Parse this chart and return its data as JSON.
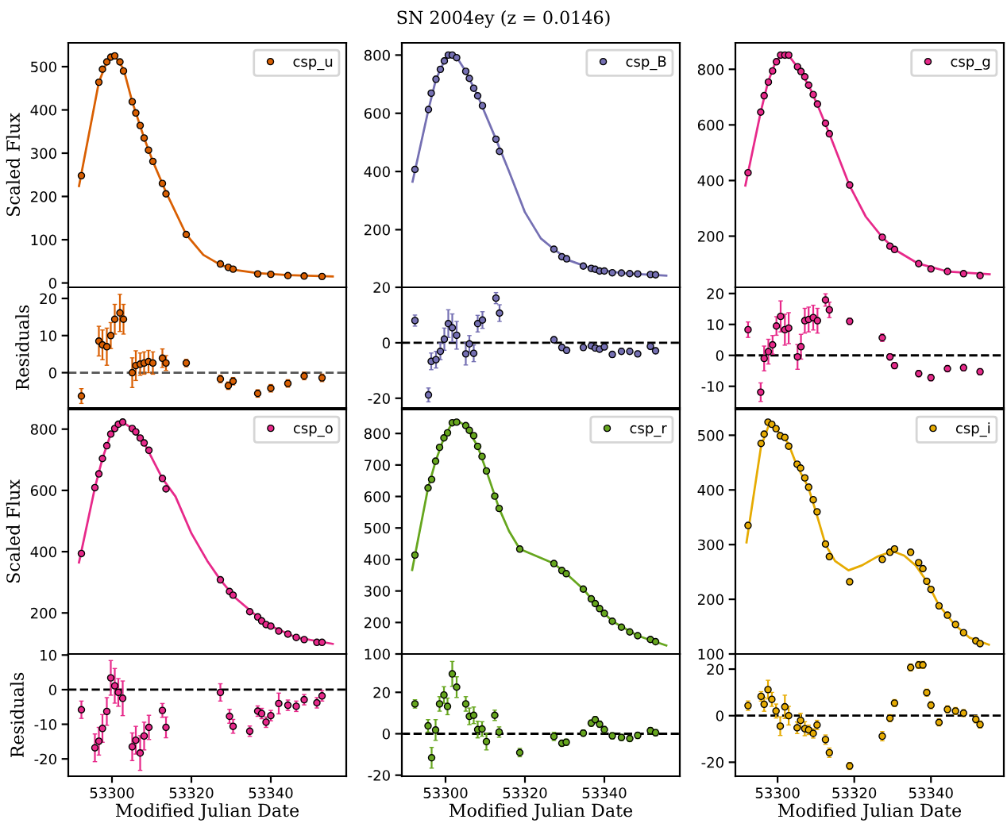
{
  "chart_data": [
    {
      "type": "scatter",
      "ylabel": "Scaled Flux",
      "legend": "top right",
      "marker": "circle",
      "tick_labels": "y",
      "xlim": [
        53289,
        53359
      ],
      "xticks": [
        53300,
        53320,
        53340
      ],
      "ylim": [
        -10,
        555
      ],
      "yticks": [
        0,
        100,
        200,
        300,
        400,
        500
      ],
      "series": [
        {
          "name": "csp_u",
          "color": "#d95f02",
          "x": [
            53292.3,
            53296.7,
            53297.6,
            53298.7,
            53299.7,
            53300.7,
            53302.0,
            53302.9,
            53305.1,
            53306.0,
            53307.1,
            53308.1,
            53309.2,
            53310.3,
            53312.7,
            53313.6,
            53318.7,
            53327.3,
            53329.3,
            53330.5,
            53336.7,
            53340.0,
            53344.3,
            53348.4,
            53352.9
          ],
          "values": [
            248,
            464,
            494,
            511,
            522,
            525,
            511,
            490,
            419,
            393,
            364,
            335,
            307,
            281,
            230,
            206,
            112,
            44,
            36,
            32,
            21,
            20,
            17,
            16,
            15
          ]
        },
        {
          "type": "line",
          "marker": "none",
          "color": "#d95f02",
          "x": [
            53291.7,
            53296.7,
            53298.7,
            53300.7,
            53302.9,
            53305.1,
            53308.1,
            53310.3,
            53313.6,
            53318.7,
            53323,
            53327.3,
            53331,
            53336.7,
            53344.3,
            53355.6
          ],
          "values": [
            224,
            464,
            511,
            525,
            495,
            419,
            335,
            281,
            210,
            112,
            65,
            42,
            30,
            23,
            18,
            15
          ]
        }
      ]
    },
    {
      "type": "scatter",
      "title": "SN 2004ey (z = 0.0146)",
      "legend": "top right",
      "marker": "circle",
      "tick_labels": "y",
      "xlim": [
        53289,
        53359
      ],
      "xticks": [
        53300,
        53320,
        53340
      ],
      "ylim": [
        2,
        842
      ],
      "yticks": [
        200,
        400,
        600,
        800
      ],
      "series": [
        {
          "name": "csp_B",
          "color": "#7570b3",
          "x": [
            53292.3,
            53295.7,
            53296.4,
            53297.6,
            53298.7,
            53299.7,
            53300.7,
            53301.7,
            53302.8,
            53305.1,
            53306.0,
            53307.1,
            53308.1,
            53309.3,
            53312.7,
            53313.6,
            53327.3,
            53329.3,
            53330.5,
            53334.7,
            53336.7,
            53337.7,
            53338.8,
            53340.0,
            53342.0,
            53344.3,
            53346.4,
            53348.4,
            53351.6,
            53352.9
          ],
          "values": [
            407,
            613,
            669,
            717,
            751,
            780,
            800,
            800,
            791,
            744,
            720,
            686,
            660,
            626,
            511,
            469,
            133,
            107,
            100,
            75,
            67,
            64,
            58,
            58,
            52,
            51,
            49,
            48,
            46,
            45
          ]
        },
        {
          "type": "line",
          "marker": "none",
          "color": "#7570b3",
          "x": [
            53291.7,
            53295.7,
            53297.6,
            53299.7,
            53301.2,
            53302.8,
            53305.1,
            53308.1,
            53312.7,
            53316,
            53320,
            53324,
            53327.3,
            53331,
            53336.7,
            53344.3,
            53355.6
          ],
          "values": [
            365,
            613,
            717,
            780,
            800,
            793,
            744,
            660,
            511,
            400,
            260,
            170,
            133,
            95,
            67,
            51,
            42
          ]
        }
      ]
    },
    {
      "type": "scatter",
      "legend": "top right",
      "marker": "circle",
      "tick_labels": "y",
      "xlim": [
        53289,
        53359
      ],
      "xticks": [
        53300,
        53320,
        53340
      ],
      "ylim": [
        16,
        895
      ],
      "yticks": [
        200,
        400,
        600,
        800
      ],
      "series": [
        {
          "name": "csp_g",
          "color": "#e7298a",
          "x": [
            53292.3,
            53295.6,
            53296.5,
            53297.6,
            53298.7,
            53299.7,
            53300.8,
            53301.9,
            53302.9,
            53305.2,
            53306.1,
            53307.1,
            53308.1,
            53309.3,
            53310.4,
            53312.5,
            53313.5,
            53318.8,
            53327.3,
            53329.3,
            53330.5,
            53336.8,
            53340.0,
            53344.3,
            53348.5,
            53352.8
          ],
          "values": [
            428,
            646,
            705,
            754,
            794,
            827,
            851,
            851,
            851,
            809,
            792,
            773,
            743,
            709,
            675,
            606,
            568,
            384,
            196,
            164,
            152,
            101,
            82,
            73,
            65,
            58
          ]
        },
        {
          "type": "line",
          "marker": "none",
          "color": "#e7298a",
          "x": [
            53291.6,
            53295.6,
            53297.5,
            53299.5,
            53301.2,
            53303,
            53305.1,
            53308.1,
            53310.3,
            53313.5,
            53318.7,
            53323,
            53327.3,
            53331,
            53336.7,
            53344.3,
            53355.3
          ],
          "values": [
            382,
            646,
            754,
            827,
            852,
            848,
            809,
            743,
            675,
            568,
            384,
            270,
            196,
            148,
            101,
            73,
            63
          ]
        }
      ]
    },
    {
      "type": "scatter",
      "ylabel": "Residuals",
      "marker": "circle",
      "tick_labels": "y",
      "xlim": [
        53289,
        53359
      ],
      "xticks": [
        53300,
        53320,
        53340
      ],
      "ylim": [
        -9.5,
        23
      ],
      "yticks": [
        0,
        10,
        20
      ],
      "ref_lines": [
        {
          "axis": "y",
          "value": 0,
          "line_style": "dashed",
          "color": "#555555"
        }
      ],
      "series": [
        {
          "color": "#d95f02",
          "x": [
            53292.3,
            53296.7,
            53297.6,
            53298.7,
            53299.7,
            53300.7,
            53302.0,
            53302.9,
            53305.1,
            53306.0,
            53307.1,
            53308.1,
            53309.2,
            53310.3,
            53312.7,
            53313.6,
            53318.7,
            53327.3,
            53329.3,
            53330.5,
            53336.7,
            53340.0,
            53344.3,
            53348.4,
            53352.9
          ],
          "values": [
            -6.3,
            8.5,
            7.5,
            7,
            10,
            14.4,
            16.1,
            14.4,
            0,
            1.9,
            2.3,
            2.6,
            3.0,
            2.6,
            3.9,
            2.6,
            2.6,
            -1.7,
            -3.5,
            -2.3,
            -5.6,
            -4.2,
            -2.9,
            -0.9,
            -1.4
          ],
          "errors": [
            2,
            4,
            4,
            5,
            3.5,
            4,
            5,
            4,
            4,
            4,
            3,
            3,
            3,
            3,
            2.5,
            2,
            1,
            1,
            1,
            1,
            1,
            1,
            1,
            1,
            1
          ]
        }
      ]
    },
    {
      "type": "scatter",
      "marker": "circle",
      "tick_labels": "y",
      "xlim": [
        53289,
        53359
      ],
      "xticks": [
        53300,
        53320,
        53340
      ],
      "ylim": [
        -23.5,
        20
      ],
      "yticks": [
        -20,
        0,
        20
      ],
      "ref_lines": [
        {
          "axis": "y",
          "value": 0,
          "line_style": "dashed",
          "color": "#000000"
        }
      ],
      "series": [
        {
          "color": "#7570b3",
          "x": [
            53292.3,
            53295.7,
            53296.4,
            53297.6,
            53298.7,
            53299.7,
            53300.7,
            53301.7,
            53302.8,
            53305.1,
            53306.0,
            53307.1,
            53308.1,
            53309.3,
            53312.7,
            53313.6,
            53327.3,
            53329.3,
            53330.5,
            53334.7,
            53336.7,
            53337.7,
            53338.8,
            53340.0,
            53342.0,
            53344.3,
            53346.4,
            53348.4,
            53351.6,
            53352.9
          ],
          "values": [
            8.0,
            -18.8,
            -6.7,
            -6.1,
            -3.1,
            1.3,
            6.9,
            5.4,
            2.7,
            -4.0,
            -0.4,
            -3.8,
            6.9,
            8.2,
            16.1,
            10.7,
            1.1,
            -1.7,
            -2.7,
            -1.7,
            -1.1,
            -1.9,
            -2.3,
            -1.5,
            -4.2,
            -3.1,
            -3.1,
            -4.0,
            -1.3,
            -2.9
          ],
          "errors": [
            2,
            2.5,
            3,
            3,
            3,
            4,
            5,
            5,
            5,
            4,
            3,
            3,
            3,
            3,
            2,
            3,
            1,
            1,
            1,
            1,
            1,
            1,
            1,
            1,
            1,
            1,
            1,
            1,
            1,
            1
          ]
        }
      ]
    },
    {
      "type": "scatter",
      "marker": "circle",
      "tick_labels": "y",
      "xlim": [
        53289,
        53359
      ],
      "xticks": [
        53300,
        53320,
        53340
      ],
      "ylim": [
        -17,
        22
      ],
      "yticks": [
        -10,
        0,
        10,
        20
      ],
      "ref_lines": [
        {
          "axis": "y",
          "value": 0,
          "line_style": "dashed",
          "color": "#000000"
        }
      ],
      "series": [
        {
          "color": "#e7298a",
          "x": [
            53292.3,
            53295.6,
            53296.5,
            53297.6,
            53298.7,
            53299.7,
            53300.8,
            53301.9,
            53302.9,
            53305.2,
            53306.1,
            53307.1,
            53308.1,
            53309.3,
            53310.4,
            53312.5,
            53313.5,
            53318.8,
            53327.3,
            53329.3,
            53330.5,
            53336.8,
            53340.0,
            53344.3,
            53348.5,
            53352.8
          ],
          "values": [
            8.3,
            -11.9,
            -1.0,
            1.2,
            3.4,
            9.5,
            12.6,
            8.3,
            8.8,
            -0.5,
            2.8,
            11.2,
            11.6,
            12.2,
            11.2,
            17.9,
            14.7,
            11.0,
            5.7,
            -0.5,
            -3.3,
            -5.9,
            -7.2,
            -4.3,
            -4.0,
            -5.3
          ],
          "errors": [
            2.5,
            3,
            4,
            4,
            3,
            3,
            5,
            5,
            5,
            4,
            4,
            4,
            4,
            4,
            4,
            2,
            2.5,
            1,
            1.2,
            1,
            1,
            1,
            1,
            1,
            1,
            1
          ]
        }
      ]
    },
    {
      "type": "scatter",
      "ylabel": "Scaled Flux",
      "legend": "top right",
      "marker": "circle",
      "tick_labels": "y",
      "xlim": [
        53289,
        53359
      ],
      "xticks": [
        53300,
        53320,
        53340
      ],
      "ylim": [
        66,
        864
      ],
      "yticks": [
        200,
        400,
        600,
        800
      ],
      "series": [
        {
          "name": "csp_o",
          "color": "#e7298a",
          "x": [
            53292.3,
            53295.7,
            53296.7,
            53297.6,
            53298.7,
            53299.7,
            53300.7,
            53301.6,
            53302.7,
            53305.1,
            53306.0,
            53307.1,
            53308.1,
            53309.3,
            53312.7,
            53313.6,
            53327.3,
            53329.6,
            53330.5,
            53334.7,
            53336.7,
            53337.7,
            53338.8,
            53340.0,
            53342.0,
            53344.3,
            53346.4,
            53348.4,
            53351.6,
            53352.9
          ],
          "values": [
            394,
            609,
            654,
            704,
            746,
            784,
            802,
            816,
            823,
            802,
            791,
            771,
            755,
            731,
            639,
            605,
            308,
            270,
            258,
            204,
            187,
            174,
            162,
            157,
            141,
            131,
            120,
            113,
            104,
            104
          ]
        },
        {
          "type": "line",
          "marker": "none",
          "color": "#e7298a",
          "x": [
            53291.7,
            53295.7,
            53297.6,
            53299.7,
            53301.6,
            53302.7,
            53305.1,
            53308.1,
            53312.7,
            53316,
            53320,
            53324,
            53327.3,
            53331,
            53336.7,
            53340,
            53346.4,
            53355.6
          ],
          "values": [
            365,
            609,
            704,
            784,
            816,
            823,
            802,
            755,
            639,
            580,
            460,
            370,
            308,
            250,
            187,
            157,
            120,
            99
          ]
        }
      ]
    },
    {
      "type": "scatter",
      "legend": "top right",
      "marker": "circle",
      "tick_labels": "y",
      "xlim": [
        53289,
        53359
      ],
      "xticks": [
        53300,
        53320,
        53340
      ],
      "ylim": [
        100,
        876
      ],
      "yticks": [
        100,
        200,
        300,
        400,
        500,
        600,
        700,
        800
      ],
      "series": [
        {
          "name": "csp_r",
          "color": "#66a61e",
          "x": [
            53292.3,
            53295.6,
            53296.5,
            53297.5,
            53298.5,
            53299.6,
            53300.5,
            53301.7,
            53302.8,
            53305.1,
            53306.0,
            53307.1,
            53308.1,
            53309.2,
            53310.3,
            53312.4,
            53313.5,
            53318.7,
            53327.3,
            53329.3,
            53330.4,
            53334.7,
            53336.7,
            53337.7,
            53338.8,
            53340.0,
            53342.0,
            53344.3,
            53346.4,
            53348.4,
            53351.6,
            53352.9
          ],
          "values": [
            414,
            627,
            654,
            712,
            756,
            786,
            802,
            834,
            836,
            825,
            810,
            793,
            759,
            727,
            681,
            601,
            562,
            433,
            387,
            365,
            355,
            306,
            275,
            260,
            244,
            229,
            204,
            185,
            170,
            158,
            146,
            139
          ]
        },
        {
          "type": "line",
          "marker": "none",
          "color": "#66a61e",
          "x": [
            53291.6,
            53295.6,
            53297.5,
            53299.6,
            53301.7,
            53303.2,
            53305.1,
            53308.1,
            53310.3,
            53313.5,
            53316,
            53318.7,
            53327.3,
            53330.4,
            53334.7,
            53338.8,
            53342,
            53348.4,
            53355.6
          ],
          "values": [
            367,
            627,
            712,
            786,
            834,
            838,
            825,
            759,
            681,
            562,
            490,
            433,
            387,
            355,
            306,
            244,
            204,
            158,
            127
          ]
        }
      ]
    },
    {
      "type": "scatter",
      "legend": "top right",
      "marker": "circle",
      "tick_labels": "y",
      "xlim": [
        53289,
        53359
      ],
      "xticks": [
        53300,
        53320,
        53340
      ],
      "ylim": [
        100,
        547
      ],
      "yticks": [
        100,
        200,
        300,
        400,
        500
      ],
      "series": [
        {
          "name": "csp_i",
          "color": "#e6ab02",
          "x": [
            53292.3,
            53295.7,
            53296.5,
            53297.5,
            53298.5,
            53299.6,
            53300.7,
            53301.9,
            53302.9,
            53305.1,
            53306.0,
            53307.1,
            53308.1,
            53309.3,
            53310.3,
            53312.5,
            53313.5,
            53318.8,
            53327.3,
            53329.3,
            53330.5,
            53334.7,
            53336.8,
            53337.9,
            53338.9,
            53340.0,
            53342.1,
            53344.3,
            53346.4,
            53348.5,
            53351.7,
            53352.8
          ],
          "values": [
            335,
            485,
            502,
            524,
            520,
            512,
            499,
            496,
            480,
            447,
            440,
            422,
            405,
            382,
            360,
            301,
            278,
            232,
            273,
            286,
            292,
            286,
            267,
            256,
            233,
            218,
            188,
            171,
            154,
            139,
            124,
            119
          ]
        },
        {
          "type": "line",
          "marker": "none",
          "color": "#e6ab02",
          "x": [
            53291.9,
            53295.7,
            53297.9,
            53300.4,
            53302.8,
            53305,
            53308,
            53310,
            53312.5,
            53315,
            53318.5,
            53322,
            53326,
            53330,
            53333,
            53336,
            53338.7,
            53342,
            53346,
            53350,
            53355.1
          ],
          "values": [
            304,
            480,
            522,
            505,
            485,
            445,
            405,
            360,
            300,
            270,
            253,
            262,
            278,
            288,
            280,
            262,
            235,
            190,
            155,
            130,
            117
          ]
        }
      ]
    },
    {
      "type": "scatter",
      "ylabel": "Residuals",
      "xlabel": "Modified Julian Date",
      "marker": "circle",
      "xlim": [
        53289,
        53359
      ],
      "xticks": [
        53300,
        53320,
        53340
      ],
      "ylim": [
        -25,
        10.3
      ],
      "yticks": [
        -20,
        -10,
        0,
        10
      ],
      "ref_lines": [
        {
          "axis": "y",
          "value": 0,
          "line_style": "dashed",
          "color": "#000000"
        }
      ],
      "series": [
        {
          "color": "#e7298a",
          "x": [
            53292.3,
            53295.7,
            53296.7,
            53297.6,
            53298.7,
            53299.7,
            53300.7,
            53301.6,
            53302.7,
            53305.1,
            53306.0,
            53307.1,
            53308.1,
            53309.3,
            53312.7,
            53313.6,
            53327.3,
            53329.6,
            53330.5,
            53334.7,
            53336.7,
            53337.7,
            53338.8,
            53340.0,
            53342.0,
            53344.3,
            53346.4,
            53348.4,
            53351.6,
            53352.9
          ],
          "values": [
            -5.8,
            -16.8,
            -14.9,
            -11.2,
            -6.3,
            3.4,
            1.1,
            -0.8,
            -2.5,
            -16.5,
            -14.6,
            -18.3,
            -13.4,
            -10.9,
            -6.0,
            -10.9,
            -0.8,
            -7.7,
            -10.6,
            -12.0,
            -6.2,
            -6.9,
            -9.4,
            -7.5,
            -4.0,
            -4.5,
            -4.8,
            -2.9,
            -3.8,
            -1.8
          ],
          "errors": [
            2.5,
            4,
            4,
            4,
            4,
            5,
            5,
            4,
            5,
            4,
            4,
            5,
            4,
            3.5,
            2,
            3,
            2.5,
            2,
            2,
            1.5,
            1.5,
            1.5,
            1.5,
            1.5,
            3,
            1.5,
            1.5,
            1.5,
            1.5,
            1.5
          ]
        }
      ]
    },
    {
      "type": "scatter",
      "xlabel": "Modified Julian Date",
      "marker": "circle",
      "xlim": [
        53289,
        53359
      ],
      "xticks": [
        53300,
        53320,
        53340
      ],
      "ylim": [
        -20.5,
        38.5
      ],
      "yticks": [
        -20,
        0,
        20
      ],
      "ref_lines": [
        {
          "axis": "y",
          "value": 0,
          "line_style": "dashed",
          "color": "#000000"
        }
      ],
      "series": [
        {
          "color": "#66a61e",
          "x": [
            53292.3,
            53295.6,
            53296.5,
            53297.5,
            53298.5,
            53299.6,
            53300.5,
            53301.7,
            53302.8,
            53305.1,
            53306.0,
            53307.1,
            53308.1,
            53309.2,
            53310.3,
            53312.4,
            53313.5,
            53318.7,
            53327.3,
            53329.3,
            53330.4,
            53334.7,
            53336.7,
            53337.7,
            53338.8,
            53340.0,
            53342.0,
            53344.3,
            53346.4,
            53348.4,
            53351.6,
            53352.9
          ],
          "values": [
            14.4,
            3.8,
            -11.6,
            1.8,
            14.4,
            18.7,
            13.2,
            28.9,
            22.5,
            14.4,
            8.4,
            8.9,
            2.0,
            2.3,
            -3.8,
            8.9,
            0.8,
            -9.1,
            -1.3,
            -4.6,
            -4.1,
            0.3,
            5.1,
            6.8,
            4.6,
            2.0,
            -1.0,
            -1.8,
            -2.3,
            -0.8,
            1.5,
            0.5
          ],
          "errors": [
            2,
            3,
            5,
            5,
            3.5,
            4,
            4,
            6,
            5,
            3.5,
            4,
            4,
            4,
            3.5,
            4,
            2.5,
            2.5,
            2,
            2,
            1.5,
            1.5,
            1.5,
            1.5,
            1.5,
            1.5,
            1.5,
            1.5,
            1.5,
            1.5,
            1.5,
            1.5,
            1.5
          ]
        }
      ]
    },
    {
      "type": "scatter",
      "xlabel": "Modified Julian Date",
      "marker": "circle",
      "xlim": [
        53289,
        53359
      ],
      "xticks": [
        53300,
        53320,
        53340
      ],
      "ylim": [
        -26,
        26.5
      ],
      "yticks": [
        -20,
        0,
        20
      ],
      "ref_lines": [
        {
          "axis": "y",
          "value": 0,
          "line_style": "dashed",
          "color": "#000000"
        }
      ],
      "series": [
        {
          "color": "#e6ab02",
          "x": [
            53292.3,
            53295.7,
            53296.5,
            53297.5,
            53298.5,
            53299.6,
            53300.7,
            53301.9,
            53302.9,
            53305.1,
            53306.0,
            53307.1,
            53308.1,
            53309.3,
            53310.3,
            53312.5,
            53313.5,
            53318.8,
            53327.3,
            53329.3,
            53330.5,
            53334.7,
            53336.8,
            53337.9,
            53338.9,
            53340.0,
            53342.1,
            53344.3,
            53346.4,
            53348.5,
            53351.7,
            53352.8
          ],
          "values": [
            4.3,
            8.3,
            4.9,
            11.2,
            7.0,
            2.0,
            -4.5,
            3.8,
            0,
            -5.2,
            -2.0,
            -5.6,
            -6.1,
            -7.6,
            -4.0,
            -10.3,
            -15.9,
            -21.6,
            -8.8,
            -1.1,
            5.4,
            20.7,
            21.8,
            21.8,
            9.9,
            4.5,
            -2.9,
            2.7,
            2.0,
            1.1,
            -1.6,
            -3.8
          ],
          "errors": [
            2,
            2,
            3,
            4,
            3,
            3,
            4,
            5,
            4,
            2.5,
            3,
            3,
            2,
            2,
            2,
            2,
            2,
            1.5,
            2,
            1.5,
            1.5,
            1.5,
            1.5,
            1.5,
            1.5,
            1.5,
            1.5,
            1.5,
            1.5,
            1.5,
            1.5,
            1.5
          ]
        }
      ]
    }
  ]
}
